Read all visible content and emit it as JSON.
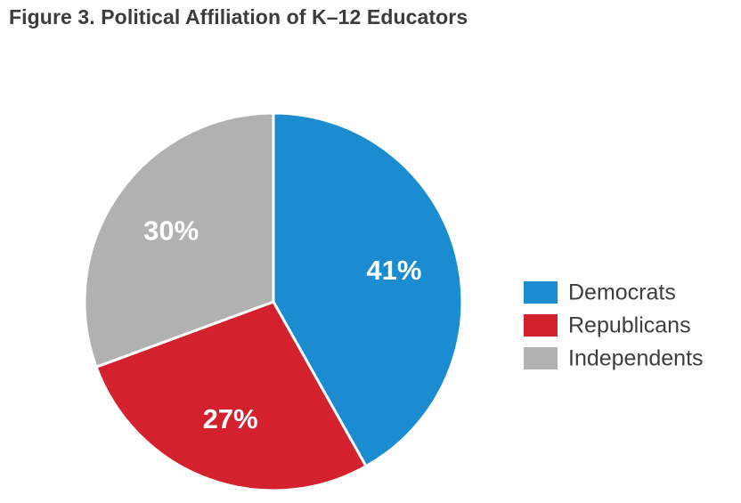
{
  "chart_data": {
    "type": "pie",
    "title": "Figure 3. Political Affiliation of K–12 Educators",
    "slices": [
      {
        "name": "Democrats",
        "value": 41,
        "label": "41%",
        "color": "#1b8ccf"
      },
      {
        "name": "Republicans",
        "value": 27,
        "label": "27%",
        "color": "#d3222e"
      },
      {
        "name": "Independents",
        "value": 30,
        "label": "30%",
        "color": "#b1b1b1"
      }
    ],
    "start_angle": "12 o'clock",
    "direction": "clockwise",
    "legend": {
      "position": "right",
      "entries": [
        "Democrats",
        "Republicans",
        "Independents"
      ]
    }
  }
}
